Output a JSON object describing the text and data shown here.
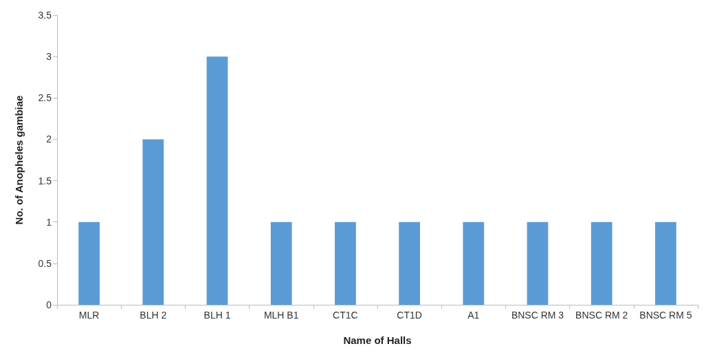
{
  "chart_data": {
    "type": "bar",
    "xlabel": "Name of Halls",
    "ylabel": "No. of Anopheles gambiae",
    "categories": [
      "MLR",
      "BLH 2",
      "BLH 1",
      "MLH B1",
      "CT1C",
      "CT1D",
      "A1",
      "BNSC RM 3",
      "BNSC RM 2",
      "BNSC RM 5"
    ],
    "values": [
      1,
      2,
      3,
      1,
      1,
      1,
      1,
      1,
      1,
      1
    ],
    "color": "#5b9bd5",
    "ylim": [
      0,
      3.5
    ],
    "yticks": [
      0,
      0.5,
      1,
      1.5,
      2,
      2.5,
      3,
      3.5
    ],
    "grid": false
  }
}
